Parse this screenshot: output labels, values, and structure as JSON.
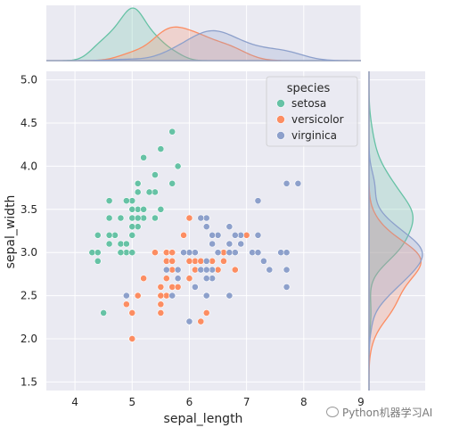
{
  "chart_data": {
    "type": "scatter",
    "xlabel": "sepal_length",
    "ylabel": "sepal_width",
    "xlim": [
      3.5,
      9.0
    ],
    "ylim": [
      1.4,
      5.1
    ],
    "xticks": [
      "4",
      "5",
      "6",
      "7",
      "8",
      "9"
    ],
    "yticks": [
      "1.5",
      "2.0",
      "2.5",
      "3.0",
      "3.5",
      "4.0",
      "4.5",
      "5.0"
    ],
    "grid": true,
    "legend": {
      "title": "species",
      "placement": "top-right"
    },
    "marginals": "kde",
    "series": [
      {
        "name": "setosa",
        "color": "#66c2a5",
        "points": [
          [
            5.1,
            3.5
          ],
          [
            4.9,
            3.0
          ],
          [
            4.7,
            3.2
          ],
          [
            4.6,
            3.1
          ],
          [
            5.0,
            3.6
          ],
          [
            5.4,
            3.9
          ],
          [
            4.6,
            3.4
          ],
          [
            5.0,
            3.4
          ],
          [
            4.4,
            2.9
          ],
          [
            4.9,
            3.1
          ],
          [
            5.4,
            3.7
          ],
          [
            4.8,
            3.4
          ],
          [
            4.8,
            3.0
          ],
          [
            4.3,
            3.0
          ],
          [
            5.8,
            4.0
          ],
          [
            5.7,
            4.4
          ],
          [
            5.4,
            3.9
          ],
          [
            5.1,
            3.5
          ],
          [
            5.7,
            3.8
          ],
          [
            5.1,
            3.8
          ],
          [
            5.4,
            3.4
          ],
          [
            5.1,
            3.7
          ],
          [
            4.6,
            3.6
          ],
          [
            5.1,
            3.3
          ],
          [
            4.8,
            3.4
          ],
          [
            5.0,
            3.0
          ],
          [
            5.0,
            3.4
          ],
          [
            5.2,
            3.5
          ],
          [
            5.2,
            3.4
          ],
          [
            4.7,
            3.2
          ],
          [
            4.8,
            3.1
          ],
          [
            5.4,
            3.4
          ],
          [
            5.2,
            4.1
          ],
          [
            5.5,
            4.2
          ],
          [
            4.9,
            3.1
          ],
          [
            5.0,
            3.2
          ],
          [
            5.5,
            3.5
          ],
          [
            4.9,
            3.6
          ],
          [
            4.4,
            3.0
          ],
          [
            5.1,
            3.4
          ],
          [
            5.0,
            3.5
          ],
          [
            4.5,
            2.3
          ],
          [
            4.4,
            3.2
          ],
          [
            5.0,
            3.5
          ],
          [
            5.1,
            3.8
          ],
          [
            4.8,
            3.0
          ],
          [
            5.1,
            3.8
          ],
          [
            4.6,
            3.2
          ],
          [
            5.3,
            3.7
          ],
          [
            5.0,
            3.3
          ]
        ]
      },
      {
        "name": "versicolor",
        "color": "#fc8d62",
        "points": [
          [
            7.0,
            3.2
          ],
          [
            6.4,
            3.2
          ],
          [
            6.9,
            3.1
          ],
          [
            5.5,
            2.3
          ],
          [
            6.5,
            2.8
          ],
          [
            5.7,
            2.8
          ],
          [
            6.3,
            3.3
          ],
          [
            4.9,
            2.4
          ],
          [
            6.6,
            2.9
          ],
          [
            5.2,
            2.7
          ],
          [
            5.0,
            2.0
          ],
          [
            5.9,
            3.0
          ],
          [
            6.0,
            2.2
          ],
          [
            6.1,
            2.9
          ],
          [
            5.6,
            2.9
          ],
          [
            6.7,
            3.1
          ],
          [
            5.6,
            3.0
          ],
          [
            5.8,
            2.7
          ],
          [
            6.2,
            2.2
          ],
          [
            5.6,
            2.5
          ],
          [
            5.9,
            3.2
          ],
          [
            6.1,
            2.8
          ],
          [
            6.3,
            2.5
          ],
          [
            6.1,
            2.8
          ],
          [
            6.4,
            2.9
          ],
          [
            6.6,
            3.0
          ],
          [
            6.8,
            2.8
          ],
          [
            6.7,
            3.0
          ],
          [
            6.0,
            2.9
          ],
          [
            5.7,
            2.6
          ],
          [
            5.5,
            2.4
          ],
          [
            5.5,
            2.4
          ],
          [
            5.8,
            2.7
          ],
          [
            6.0,
            2.7
          ],
          [
            5.4,
            3.0
          ],
          [
            6.0,
            3.4
          ],
          [
            6.7,
            3.1
          ],
          [
            6.3,
            2.3
          ],
          [
            5.6,
            3.0
          ],
          [
            5.5,
            2.5
          ],
          [
            5.5,
            2.6
          ],
          [
            6.1,
            3.0
          ],
          [
            5.8,
            2.6
          ],
          [
            5.0,
            2.3
          ],
          [
            5.6,
            2.7
          ],
          [
            5.7,
            3.0
          ],
          [
            5.7,
            2.9
          ],
          [
            6.2,
            2.9
          ],
          [
            5.1,
            2.5
          ],
          [
            5.7,
            2.8
          ]
        ]
      },
      {
        "name": "virginica",
        "color": "#8da0cb",
        "points": [
          [
            6.3,
            3.3
          ],
          [
            5.8,
            2.7
          ],
          [
            7.1,
            3.0
          ],
          [
            6.3,
            2.9
          ],
          [
            6.5,
            3.0
          ],
          [
            7.6,
            3.0
          ],
          [
            4.9,
            2.5
          ],
          [
            7.3,
            2.9
          ],
          [
            6.7,
            2.5
          ],
          [
            7.2,
            3.6
          ],
          [
            6.5,
            3.2
          ],
          [
            6.4,
            2.7
          ],
          [
            6.8,
            3.0
          ],
          [
            5.7,
            2.5
          ],
          [
            5.8,
            2.8
          ],
          [
            6.4,
            3.2
          ],
          [
            6.5,
            3.0
          ],
          [
            7.7,
            3.8
          ],
          [
            7.7,
            2.6
          ],
          [
            6.0,
            2.2
          ],
          [
            6.9,
            3.2
          ],
          [
            5.6,
            2.8
          ],
          [
            7.7,
            2.8
          ],
          [
            6.3,
            2.7
          ],
          [
            6.7,
            3.3
          ],
          [
            7.2,
            3.2
          ],
          [
            6.2,
            2.8
          ],
          [
            6.1,
            3.0
          ],
          [
            6.4,
            2.8
          ],
          [
            7.2,
            3.0
          ],
          [
            7.4,
            2.8
          ],
          [
            7.9,
            3.8
          ],
          [
            6.4,
            2.8
          ],
          [
            6.3,
            2.8
          ],
          [
            6.1,
            2.6
          ],
          [
            7.7,
            3.0
          ],
          [
            6.3,
            3.4
          ],
          [
            6.4,
            3.1
          ],
          [
            6.0,
            3.0
          ],
          [
            6.9,
            3.1
          ],
          [
            6.7,
            3.1
          ],
          [
            6.9,
            3.1
          ],
          [
            5.8,
            2.7
          ],
          [
            6.8,
            3.2
          ],
          [
            6.7,
            3.3
          ],
          [
            6.7,
            3.0
          ],
          [
            6.3,
            2.5
          ],
          [
            6.5,
            3.0
          ],
          [
            6.2,
            3.4
          ],
          [
            5.9,
            3.0
          ]
        ]
      }
    ]
  },
  "watermark": "Python机器学习AI"
}
